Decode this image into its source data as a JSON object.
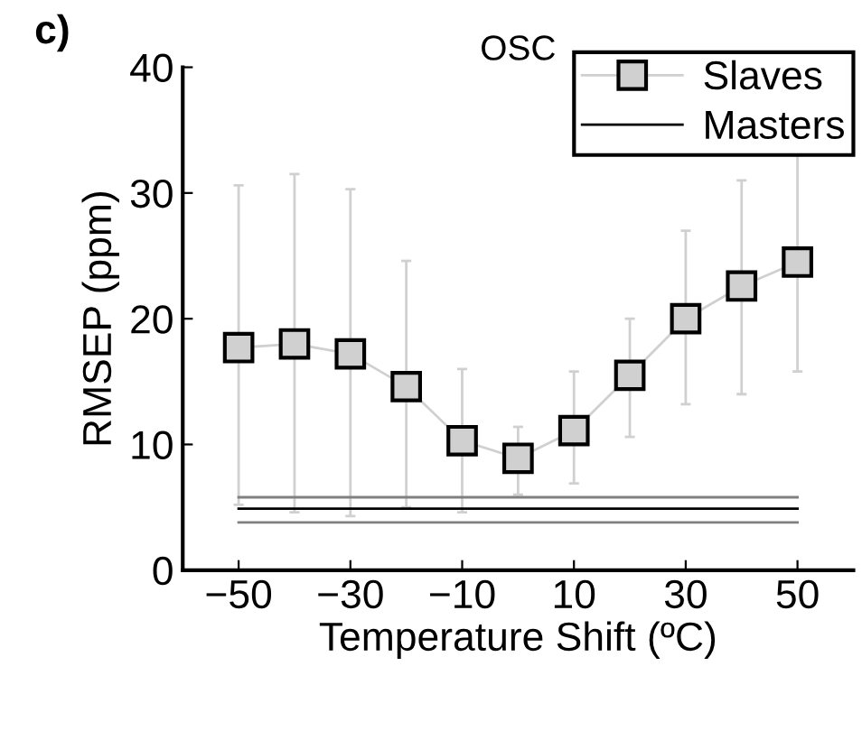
{
  "chart_data": {
    "type": "line",
    "title": "OSC",
    "xlabel": "Temperature Shift (ºC)",
    "ylabel": "RMSEP (ppm)",
    "annotations": [
      "c)"
    ],
    "x": [
      -50,
      -40,
      -30,
      -20,
      -10,
      0,
      10,
      20,
      30,
      40,
      50
    ],
    "series": [
      {
        "name": "Slaves",
        "type": "line",
        "color": "#d0d0d0",
        "marker": "square",
        "values": [
          17.7,
          18.0,
          17.2,
          14.6,
          10.3,
          8.9,
          11.1,
          15.5,
          20.0,
          22.6,
          24.5
        ],
        "errors": [
          [
            5.2,
            30.6
          ],
          [
            4.6,
            31.5
          ],
          [
            4.3,
            30.3
          ],
          [
            5.0,
            24.6
          ],
          [
            4.6,
            16.0
          ],
          [
            6.0,
            11.4
          ],
          [
            6.9,
            15.8
          ],
          [
            10.6,
            20.0
          ],
          [
            13.2,
            27
          ],
          [
            14.0,
            31
          ],
          [
            15.8,
            33
          ]
        ]
      },
      {
        "name": "Masters",
        "type": "line",
        "color": "#000000",
        "marker": "none",
        "values": [
          4.9,
          4.9,
          4.9,
          4.9,
          4.9,
          4.9,
          4.9,
          4.9,
          4.9,
          4.9,
          4.9
        ]
      },
      {
        "type": "line",
        "color": "#808080",
        "marker": "none",
        "values": [
          5.8,
          5.8,
          5.8,
          5.8,
          5.8,
          5.8,
          5.8,
          5.8,
          5.8,
          5.8,
          5.8
        ]
      },
      {
        "type": "line",
        "color": "#808080",
        "marker": "none",
        "values": [
          3.8,
          3.8,
          3.8,
          3.8,
          3.8,
          3.8,
          3.8,
          3.8,
          3.8,
          3.8,
          3.8
        ]
      }
    ],
    "xlim": [
      -60,
      60
    ],
    "ylim": [
      0,
      40
    ],
    "xticks": [
      {
        "value": -50,
        "label": "−50"
      },
      {
        "value": -30,
        "label": "−30"
      },
      {
        "value": -10,
        "label": "−10"
      },
      10,
      30,
      50
    ],
    "yticks": [
      0,
      10,
      20,
      30,
      40
    ],
    "grid": false,
    "legend": "top right"
  }
}
